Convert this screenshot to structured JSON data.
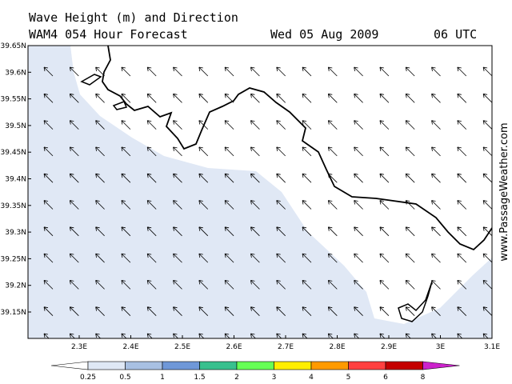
{
  "header": {
    "title": "Wave Height (m) and Direction",
    "subtitle": "WAM4 054 Hour Forecast",
    "date": "Wed 05 Aug 2009",
    "time": "06 UTC"
  },
  "watermark": "www.PassageWeather.com",
  "map": {
    "lat_ticks": [
      "39.65N",
      "39.6N",
      "39.55N",
      "39.5N",
      "39.45N",
      "39.4N",
      "39.35N",
      "39.3N",
      "39.25N",
      "39.2N",
      "39.15N"
    ],
    "lon_ticks": [
      "2.3E",
      "2.4E",
      "2.5E",
      "2.6E",
      "2.7E",
      "2.8E",
      "2.9E",
      "3E",
      "3.1E"
    ]
  },
  "legend": {
    "labels": [
      "0.25",
      "0.5",
      "1",
      "1.5",
      "2",
      "3",
      "4",
      "5",
      "6",
      "8"
    ],
    "colors": [
      "#ffffff",
      "#dfe8f5",
      "#a8c0e2",
      "#6f98d8",
      "#38c08e",
      "#66ff55",
      "#ffee00",
      "#ff9a00",
      "#ff4040",
      "#c40000",
      "#cc22cc"
    ]
  }
}
